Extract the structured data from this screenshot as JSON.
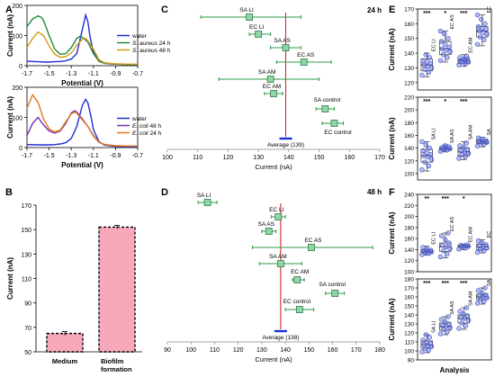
{
  "figure": {
    "panel_letters": [
      "A",
      "B",
      "C",
      "D",
      "E",
      "F"
    ]
  },
  "chart_data": [
    {
      "id": "A1",
      "type": "line",
      "panel": "A",
      "xlabel": "Potential (V)",
      "ylabel": "Current (nA)",
      "xlim": [
        -1.7,
        -0.7
      ],
      "ylim": [
        0,
        200
      ],
      "xticks": [
        "-1.7",
        "-1.5",
        "-1.3",
        "-1.1",
        "-0.9",
        "-0.7"
      ],
      "yticks": [
        "0",
        "100",
        "200"
      ],
      "legend_position": "right",
      "series": [
        {
          "name": "water",
          "color": "#1f2fd6",
          "x": [
            -1.7,
            -1.65,
            -1.6,
            -1.55,
            -1.5,
            -1.45,
            -1.4,
            -1.35,
            -1.3,
            -1.25,
            -1.2,
            -1.17,
            -1.15,
            -1.13,
            -1.1,
            -1.05,
            -1.0,
            -0.9,
            -0.8,
            -0.7
          ],
          "y": [
            15,
            14,
            13,
            12,
            12,
            13,
            14,
            16,
            22,
            40,
            120,
            168,
            145,
            95,
            45,
            15,
            8,
            5,
            4,
            4
          ]
        },
        {
          "name": "S. aureus 24 h",
          "color": "#1e8a3c",
          "x": [
            -1.7,
            -1.65,
            -1.6,
            -1.57,
            -1.55,
            -1.5,
            -1.45,
            -1.4,
            -1.35,
            -1.3,
            -1.25,
            -1.22,
            -1.2,
            -1.15,
            -1.1,
            -1.05,
            -1.0,
            -0.9,
            -0.8,
            -0.7
          ],
          "y": [
            130,
            155,
            165,
            160,
            150,
            100,
            55,
            38,
            40,
            60,
            90,
            98,
            94,
            78,
            40,
            15,
            8,
            5,
            4,
            4
          ]
        },
        {
          "name": "S. aureus 48 h",
          "color": "#d49a12",
          "x": [
            -1.7,
            -1.65,
            -1.6,
            -1.55,
            -1.5,
            -1.45,
            -1.4,
            -1.35,
            -1.3,
            -1.25,
            -1.2,
            -1.17,
            -1.15,
            -1.1,
            -1.05,
            -1.0,
            -0.9,
            -0.8,
            -0.7
          ],
          "y": [
            60,
            90,
            112,
            100,
            65,
            38,
            28,
            30,
            42,
            68,
            88,
            90,
            82,
            55,
            20,
            10,
            6,
            5,
            5
          ]
        }
      ]
    },
    {
      "id": "A2",
      "type": "line",
      "panel": "A",
      "xlabel": "Potential (V)",
      "ylabel": "Current (nA)",
      "xlim": [
        -1.7,
        -0.7
      ],
      "ylim": [
        0,
        200
      ],
      "xticks": [
        "-1.7",
        "-1.5",
        "-1.3",
        "-1.1",
        "-0.9",
        "-0.7"
      ],
      "yticks": [
        "0",
        "100",
        "200"
      ],
      "legend_position": "right",
      "series": [
        {
          "name": "water",
          "color": "#1f2fd6",
          "x": [
            -1.7,
            -1.6,
            -1.5,
            -1.45,
            -1.4,
            -1.35,
            -1.3,
            -1.25,
            -1.2,
            -1.17,
            -1.15,
            -1.12,
            -1.1,
            -1.05,
            -1.0,
            -0.9,
            -0.8,
            -0.7
          ],
          "y": [
            10,
            9,
            9,
            10,
            12,
            16,
            30,
            70,
            140,
            160,
            148,
            100,
            60,
            20,
            8,
            4,
            3,
            3
          ]
        },
        {
          "name": "E. coli 48 h",
          "color": "#7a2fb0",
          "x": [
            -1.7,
            -1.65,
            -1.6,
            -1.55,
            -1.5,
            -1.45,
            -1.4,
            -1.35,
            -1.3,
            -1.27,
            -1.25,
            -1.2,
            -1.15,
            -1.1,
            -1.05,
            -1.0,
            -0.9,
            -0.8,
            -0.7
          ],
          "y": [
            40,
            80,
            100,
            75,
            55,
            48,
            55,
            80,
            115,
            122,
            118,
            95,
            70,
            40,
            18,
            10,
            6,
            5,
            5
          ]
        },
        {
          "name": "E. coli 24 h",
          "color": "#e07a18",
          "x": [
            -1.7,
            -1.65,
            -1.6,
            -1.55,
            -1.5,
            -1.45,
            -1.4,
            -1.35,
            -1.3,
            -1.27,
            -1.25,
            -1.2,
            -1.15,
            -1.1,
            -1.05,
            -1.0,
            -0.9,
            -0.8,
            -0.7
          ],
          "y": [
            130,
            175,
            150,
            95,
            62,
            52,
            58,
            85,
            112,
            118,
            114,
            92,
            70,
            38,
            18,
            10,
            6,
            5,
            5
          ]
        }
      ]
    },
    {
      "id": "B",
      "type": "bar",
      "panel": "B",
      "ylabel": "Current (nA)",
      "ylim": [
        50,
        170
      ],
      "yticks": [
        "50",
        "70",
        "90",
        "110",
        "130",
        "150",
        "170"
      ],
      "categories": [
        "Medium",
        "Biofilm\nformation"
      ],
      "values": [
        65,
        152
      ],
      "errors": [
        1.5,
        1.5
      ],
      "bar_color": "#f7a9bb"
    },
    {
      "id": "C",
      "type": "scatter",
      "panel": "C",
      "title": "24 h",
      "xlabel": "Current (nA)",
      "xlim": [
        100,
        170
      ],
      "xticks": [
        "100",
        "110",
        "120",
        "130",
        "140",
        "150",
        "160",
        "170"
      ],
      "average_label": "Average (139)",
      "average": 139,
      "points": [
        {
          "label": "SA LI",
          "value": 127,
          "lo": 111,
          "hi": 144
        },
        {
          "label": "EC LI",
          "value": 130,
          "lo": 127,
          "hi": 134
        },
        {
          "label": "SA AS",
          "value": 139,
          "lo": 134,
          "hi": 144
        },
        {
          "label": "EC AS",
          "value": 145,
          "lo": 136,
          "hi": 154
        },
        {
          "label": "SA AM",
          "value": 134,
          "lo": 117,
          "hi": 150
        },
        {
          "label": "EC AM",
          "value": 135,
          "lo": 132,
          "hi": 138
        },
        {
          "label": "SA control",
          "value": 152,
          "lo": 149,
          "hi": 155
        },
        {
          "label": "EC control",
          "value": 155,
          "lo": 151,
          "hi": 158
        }
      ]
    },
    {
      "id": "D",
      "type": "scatter",
      "panel": "D",
      "title": "48 h",
      "xlabel": "Current (nA)",
      "xlim": [
        90,
        180
      ],
      "xticks": [
        "90",
        "100",
        "110",
        "120",
        "130",
        "140",
        "150",
        "160",
        "170",
        "180"
      ],
      "average_label": "Average (138)",
      "average": 138,
      "points": [
        {
          "label": "SA LI",
          "value": 107,
          "lo": 103,
          "hi": 111
        },
        {
          "label": "EC LI",
          "value": 137,
          "lo": 134,
          "hi": 140
        },
        {
          "label": "SA AS",
          "value": 133,
          "lo": 130,
          "hi": 136
        },
        {
          "label": "EC AS",
          "value": 151,
          "lo": 126,
          "hi": 177
        },
        {
          "label": "SA AM",
          "value": 138,
          "lo": 129,
          "hi": 147
        },
        {
          "label": "EC AM",
          "value": 145,
          "lo": 143,
          "hi": 148
        },
        {
          "label": "SA control",
          "value": 161,
          "lo": 157,
          "hi": 165
        },
        {
          "label": "EC control",
          "value": 146,
          "lo": 140,
          "hi": 152
        }
      ]
    },
    {
      "id": "E1",
      "type": "box",
      "panel": "E",
      "ylabel": "Current (nA)",
      "ylim": [
        115,
        170
      ],
      "yticks": [
        "120",
        "130",
        "140",
        "150",
        "160",
        "170"
      ],
      "categories": [
        "EC LI",
        "EC AS",
        "EC AM",
        "EC"
      ],
      "significance": [
        "***",
        "*",
        "***",
        ""
      ],
      "boxes": [
        {
          "min": 124,
          "q1": 128,
          "median": 132,
          "q3": 136,
          "max": 140,
          "points": [
            125,
            127,
            129,
            130,
            131,
            132,
            133,
            134,
            135,
            137,
            139
          ]
        },
        {
          "min": 134,
          "q1": 139,
          "median": 143,
          "q3": 148,
          "max": 155,
          "points": [
            135,
            137,
            139,
            141,
            142,
            143,
            144,
            146,
            148,
            150,
            153,
            155
          ]
        },
        {
          "min": 131,
          "q1": 133,
          "median": 135,
          "q3": 136,
          "max": 139,
          "points": [
            132,
            133,
            134,
            134,
            135,
            135,
            136,
            136,
            137,
            138
          ]
        },
        {
          "min": 145,
          "q1": 151,
          "median": 155,
          "q3": 158,
          "max": 166,
          "points": [
            146,
            149,
            151,
            153,
            154,
            155,
            156,
            157,
            158,
            160,
            163,
            166
          ]
        }
      ]
    },
    {
      "id": "E2",
      "type": "box",
      "panel": "E",
      "ylabel": "Current (nA)",
      "ylim": [
        90,
        220
      ],
      "yticks": [
        "100",
        "120",
        "140",
        "160",
        "180",
        "200",
        "220"
      ],
      "categories": [
        "SA LI",
        "SA AS",
        "SA AM",
        "SA"
      ],
      "significance": [
        "***",
        "*",
        "***",
        ""
      ],
      "boxes": [
        {
          "min": 104,
          "q1": 118,
          "median": 128,
          "q3": 138,
          "max": 150,
          "points": [
            106,
            112,
            118,
            122,
            126,
            128,
            130,
            133,
            136,
            140,
            145,
            150
          ]
        },
        {
          "min": 134,
          "q1": 137,
          "median": 139,
          "q3": 142,
          "max": 145,
          "points": [
            135,
            137,
            138,
            139,
            140,
            141,
            142,
            144
          ]
        },
        {
          "min": 122,
          "q1": 128,
          "median": 134,
          "q3": 140,
          "max": 150,
          "points": [
            124,
            127,
            130,
            132,
            134,
            136,
            138,
            141,
            144,
            148
          ]
        },
        {
          "min": 142,
          "q1": 147,
          "median": 150,
          "q3": 153,
          "max": 157,
          "points": [
            143,
            146,
            148,
            149,
            150,
            151,
            152,
            154,
            156
          ]
        }
      ]
    },
    {
      "id": "F1",
      "type": "box",
      "panel": "F",
      "ylabel": "Current (nA)",
      "ylim": [
        100,
        240
      ],
      "yticks": [
        "100",
        "120",
        "140",
        "160",
        "180",
        "200",
        "220",
        "240"
      ],
      "categories": [
        "EC LI",
        "EC AS",
        "EC AM",
        "EC"
      ],
      "significance": [
        "**",
        "***",
        "*",
        ""
      ],
      "boxes": [
        {
          "min": 130,
          "q1": 134,
          "median": 137,
          "q3": 140,
          "max": 146,
          "points": [
            131,
            133,
            135,
            136,
            137,
            138,
            139,
            141,
            144
          ]
        },
        {
          "min": 125,
          "q1": 137,
          "median": 145,
          "q3": 152,
          "max": 170,
          "points": [
            127,
            132,
            138,
            142,
            145,
            148,
            152,
            158,
            165,
            170
          ]
        },
        {
          "min": 140,
          "q1": 144,
          "median": 146,
          "q3": 148,
          "max": 150,
          "points": [
            141,
            143,
            145,
            146,
            147,
            148,
            149
          ]
        },
        {
          "min": 134,
          "q1": 140,
          "median": 145,
          "q3": 150,
          "max": 158,
          "points": [
            135,
            138,
            141,
            143,
            145,
            147,
            149,
            152,
            156
          ]
        }
      ]
    },
    {
      "id": "F2",
      "type": "box",
      "panel": "F",
      "ylabel": "Current (nA)",
      "xlabel": "Analysis",
      "ylim": [
        90,
        180
      ],
      "yticks": [
        "90",
        "100",
        "110",
        "120",
        "130",
        "140",
        "150",
        "160",
        "170",
        "180"
      ],
      "categories": [
        "SA LI",
        "SA AS",
        "SA AM",
        "SA"
      ],
      "significance": [
        "***",
        "***",
        "***",
        ""
      ],
      "boxes": [
        {
          "min": 98,
          "q1": 103,
          "median": 107,
          "q3": 111,
          "max": 118,
          "points": [
            99,
            101,
            103,
            105,
            106,
            107,
            108,
            110,
            112,
            115,
            118
          ]
        },
        {
          "min": 118,
          "q1": 123,
          "median": 127,
          "q3": 131,
          "max": 138,
          "points": [
            119,
            121,
            124,
            126,
            127,
            128,
            130,
            132,
            135,
            138
          ]
        },
        {
          "min": 124,
          "q1": 131,
          "median": 136,
          "q3": 140,
          "max": 148,
          "points": [
            125,
            128,
            131,
            134,
            136,
            137,
            139,
            141,
            144,
            148
          ]
        },
        {
          "min": 152,
          "q1": 157,
          "median": 160,
          "q3": 163,
          "max": 170,
          "points": [
            153,
            155,
            157,
            159,
            160,
            161,
            162,
            164,
            167,
            170
          ]
        }
      ]
    }
  ]
}
